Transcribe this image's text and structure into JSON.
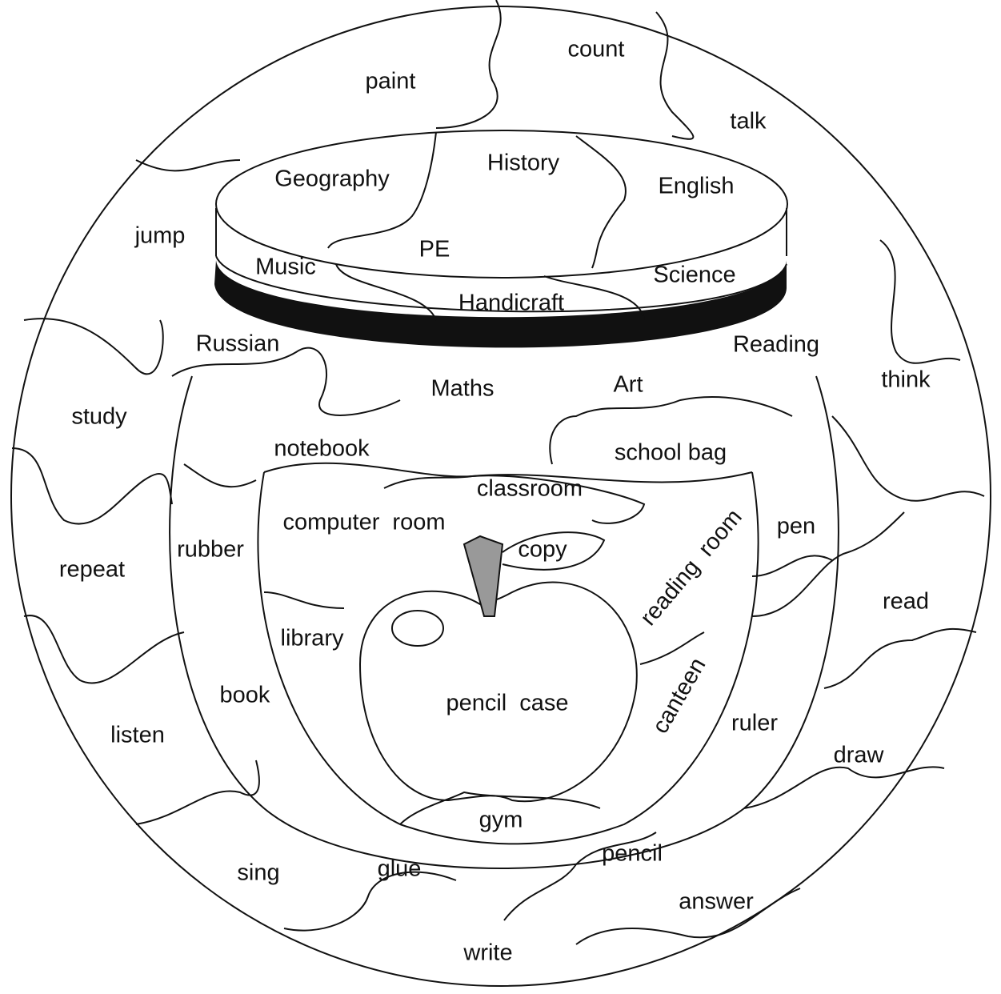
{
  "actions": [
    "paint",
    "count",
    "talk",
    "jump",
    "think",
    "study",
    "repeat",
    "read",
    "listen",
    "draw",
    "sing",
    "answer",
    "write"
  ],
  "subjects": [
    "Geography",
    "History",
    "English",
    "PE",
    "Music",
    "Science",
    "Handicraft",
    "Russian",
    "Reading",
    "Maths",
    "Art"
  ],
  "school_things": [
    "notebook",
    "school bag",
    "rubber",
    "pen",
    "book",
    "ruler",
    "glue",
    "pencil"
  ],
  "rooms": [
    "classroom",
    "computer room",
    "copy",
    "reading room",
    "library",
    "pencil case",
    "canteen",
    "gym"
  ]
}
